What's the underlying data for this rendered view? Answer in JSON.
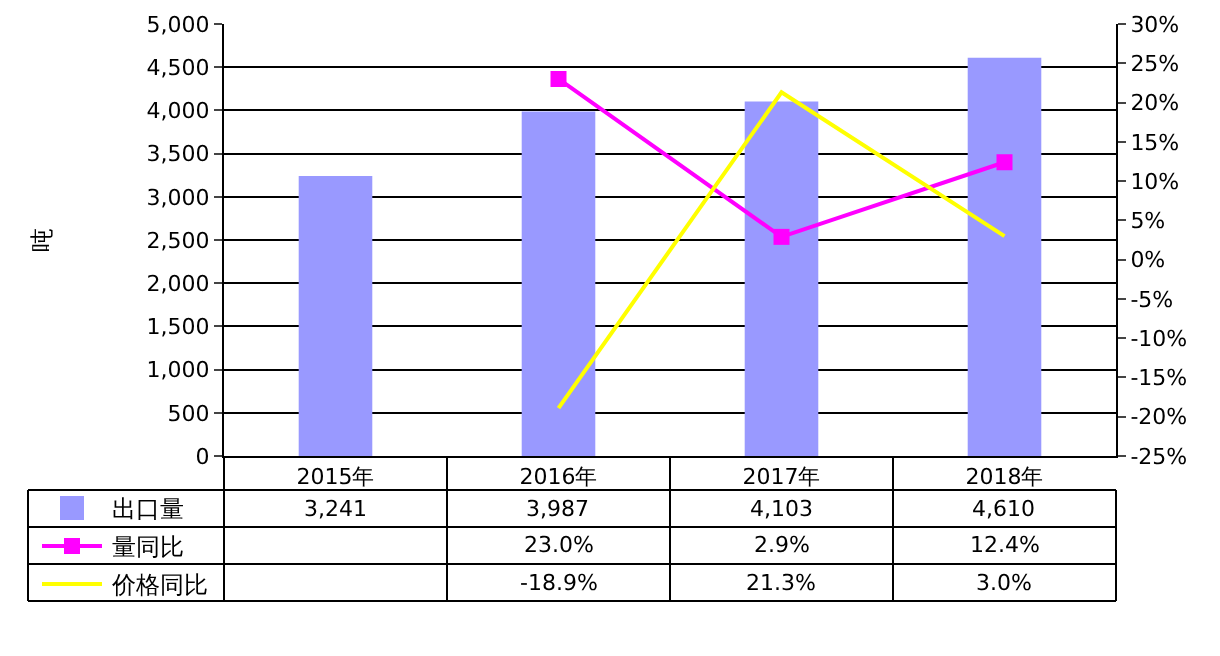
{
  "chart_data": {
    "type": "bar",
    "ylabel": "吨",
    "categories": [
      "2015年",
      "2016年",
      "2017年",
      "2018年"
    ],
    "series": [
      {
        "name": "出口量",
        "color": "#9999ff",
        "values": [
          3241,
          3987,
          4103,
          4610
        ],
        "value_labels": [
          "3,241",
          "3,987",
          "4,103",
          "4,610"
        ]
      },
      {
        "name": "量同比",
        "type": "line",
        "axis": "y2",
        "color": "#ff00ff",
        "marker": "square",
        "values": [
          null,
          23.0,
          2.9,
          12.4
        ],
        "value_labels": [
          null,
          "23.0%",
          "2.9%",
          "12.4%"
        ]
      },
      {
        "name": "价格同比",
        "type": "line",
        "axis": "y2",
        "color": "#ffff00",
        "marker": "none",
        "values": [
          null,
          -18.9,
          21.3,
          3.0
        ],
        "value_labels": [
          null,
          "-18.9%",
          "21.3%",
          "3.0%"
        ]
      }
    ],
    "ylim": [
      0,
      5000
    ],
    "yticks": [
      0,
      {
        "value": 500,
        "label": "500"
      },
      {
        "value": 1000,
        "label": "1,000"
      },
      {
        "value": 1500,
        "label": "1,500"
      },
      {
        "value": 2000,
        "label": "2,000"
      },
      {
        "value": 2500,
        "label": "2,500"
      },
      {
        "value": 3000,
        "label": "3,000"
      },
      {
        "value": 3500,
        "label": "3,500"
      },
      {
        "value": 4000,
        "label": "4,000"
      },
      {
        "value": 4500,
        "label": "4,500"
      },
      {
        "value": 5000,
        "label": "5,000"
      }
    ],
    "y2lim": [
      -25,
      30
    ],
    "y2ticks": [
      {
        "value": -25,
        "label": "-25%"
      },
      {
        "value": -20,
        "label": "-20%"
      },
      {
        "value": -15,
        "label": "-15%"
      },
      {
        "value": -10,
        "label": "-10%"
      },
      {
        "value": -5,
        "label": "-5%"
      },
      {
        "value": 0,
        "label": "0%"
      },
      {
        "value": 5,
        "label": "5%"
      },
      {
        "value": 10,
        "label": "10%"
      },
      {
        "value": 15,
        "label": "15%"
      },
      {
        "value": 20,
        "label": "20%"
      },
      {
        "value": 25,
        "label": "25%"
      },
      {
        "value": 30,
        "label": "30%"
      }
    ],
    "grid": "y",
    "legend": "bottom left",
    "line_style": "solid"
  }
}
